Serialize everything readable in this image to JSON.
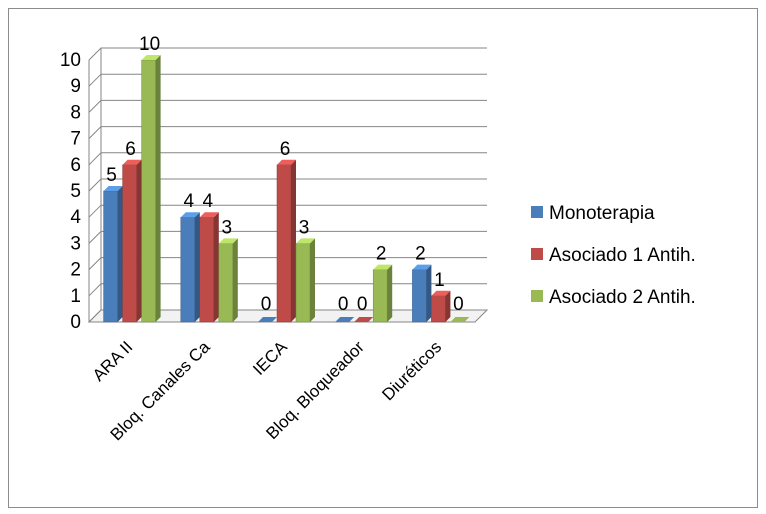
{
  "chart_data": {
    "type": "bar",
    "categories": [
      "ARA II",
      "Bloq. Canales Ca",
      "IECA",
      "Bloq. Bloqueador",
      "Diuréticos"
    ],
    "series": [
      {
        "name": "Monoterapia",
        "values": [
          5,
          4,
          0,
          0,
          2
        ],
        "color": "#4a7ebb"
      },
      {
        "name": "Asociado 1 Antih.",
        "values": [
          6,
          4,
          6,
          0,
          1
        ],
        "color": "#be4b48"
      },
      {
        "name": "Asociado 2 Antih.",
        "values": [
          10,
          3,
          3,
          2,
          0
        ],
        "color": "#98b954"
      }
    ],
    "yticks": [
      "0",
      "1",
      "2",
      "3",
      "4",
      "5",
      "6",
      "7",
      "8",
      "9",
      "10"
    ],
    "ylim": [
      0,
      10
    ],
    "grid": true,
    "legend_position": "right",
    "style": "3d-clustered-column"
  }
}
